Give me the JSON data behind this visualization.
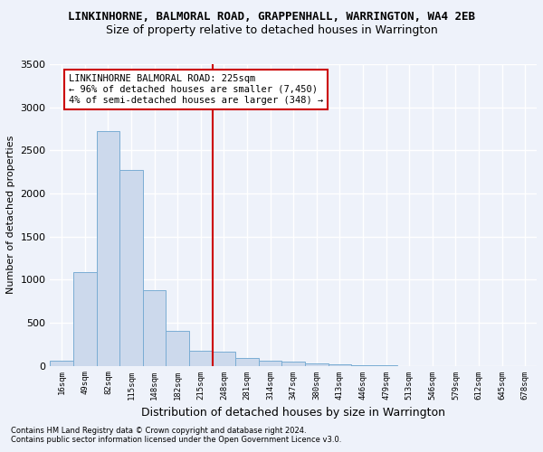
{
  "title1": "LINKINHORNE, BALMORAL ROAD, GRAPPENHALL, WARRINGTON, WA4 2EB",
  "title2": "Size of property relative to detached houses in Warrington",
  "xlabel": "Distribution of detached houses by size in Warrington",
  "ylabel": "Number of detached properties",
  "footnote1": "Contains HM Land Registry data © Crown copyright and database right 2024.",
  "footnote2": "Contains public sector information licensed under the Open Government Licence v3.0.",
  "bar_labels": [
    "16sqm",
    "49sqm",
    "82sqm",
    "115sqm",
    "148sqm",
    "182sqm",
    "215sqm",
    "248sqm",
    "281sqm",
    "314sqm",
    "347sqm",
    "380sqm",
    "413sqm",
    "446sqm",
    "479sqm",
    "513sqm",
    "546sqm",
    "579sqm",
    "612sqm",
    "645sqm",
    "678sqm"
  ],
  "bar_values": [
    55,
    1090,
    2720,
    2270,
    875,
    410,
    175,
    160,
    95,
    60,
    45,
    30,
    20,
    10,
    10,
    0,
    0,
    0,
    0,
    0,
    0
  ],
  "bar_color": "#ccd9ec",
  "bar_edgecolor": "#7aadd4",
  "vline_x": 6.5,
  "vline_color": "#cc0000",
  "annotation_text": "LINKINHORNE BALMORAL ROAD: 225sqm\n← 96% of detached houses are smaller (7,450)\n4% of semi-detached houses are larger (348) →",
  "annotation_box_facecolor": "white",
  "annotation_box_edgecolor": "#cc0000",
  "ylim": [
    0,
    3500
  ],
  "yticks": [
    0,
    500,
    1000,
    1500,
    2000,
    2500,
    3000,
    3500
  ],
  "bg_color": "#eef2fa",
  "plot_bg_color": "#eef2fa",
  "grid_color": "white",
  "title1_fontsize": 9,
  "title2_fontsize": 9,
  "ylabel_fontsize": 8,
  "xlabel_fontsize": 9,
  "annot_fontsize": 7.5
}
